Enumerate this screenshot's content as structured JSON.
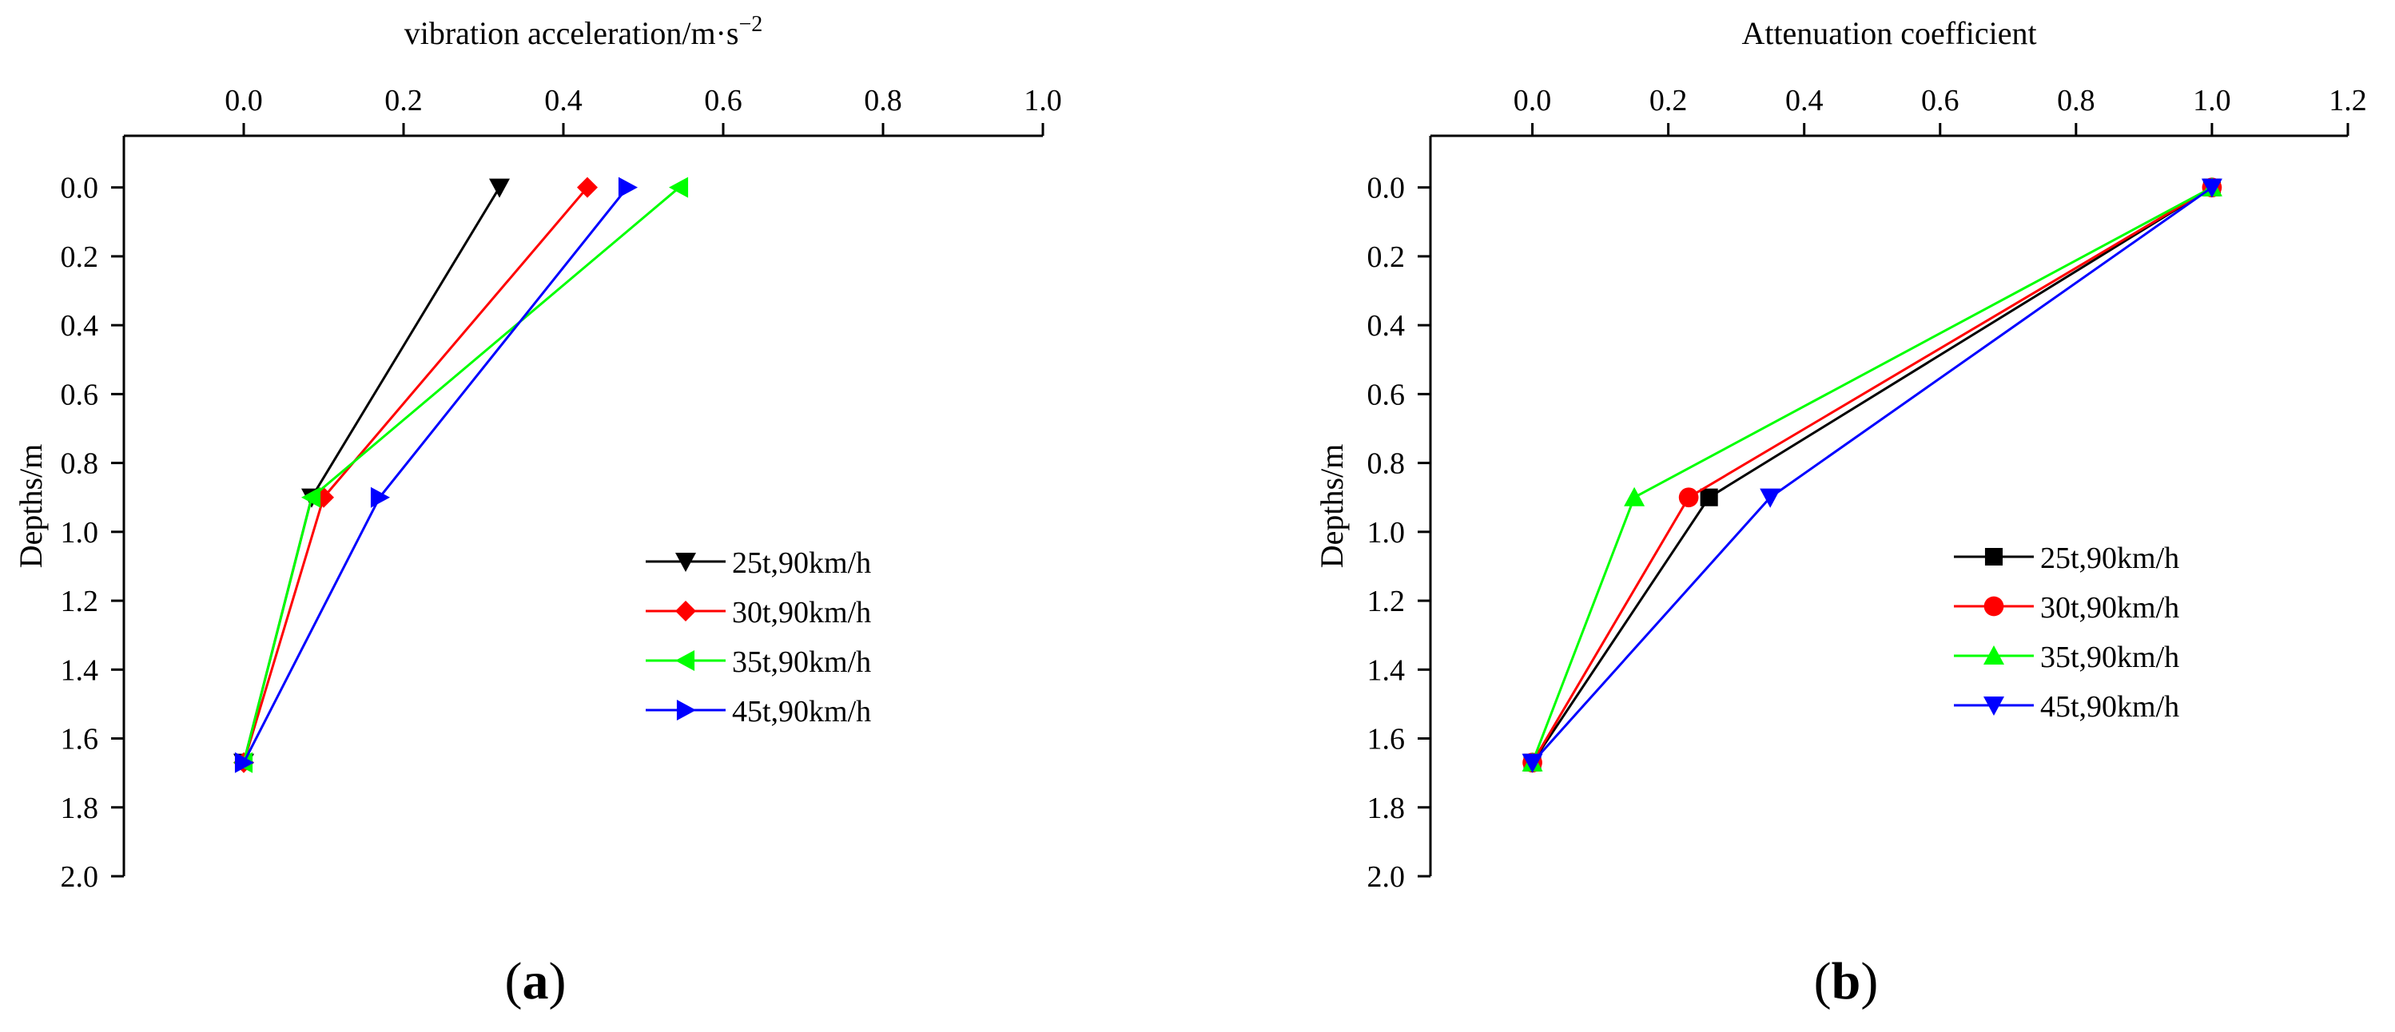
{
  "chart_data": [
    {
      "type": "line",
      "panel_label": "a",
      "xlabel": "vibration acceleration/m·s",
      "xlabel_superscript": "−2",
      "ylabel": "Depths/m",
      "xlim": [
        -0.15,
        1.0
      ],
      "ylim": [
        2.0,
        -0.15
      ],
      "x_ticks": [
        "0.0",
        "0.2",
        "0.4",
        "0.6",
        "0.8",
        "1.0"
      ],
      "y_ticks": [
        "0.0",
        "0.2",
        "0.4",
        "0.6",
        "0.8",
        "1.0",
        "1.2",
        "1.4",
        "1.6",
        "1.8",
        "2.0"
      ],
      "x_axis_position": "top",
      "y_axis_inverted": true,
      "legend_position": "right-middle",
      "series": [
        {
          "name": "25t,90km/h",
          "color": "#000000",
          "marker": "triangle-down",
          "points": [
            [
              0.32,
              0.0
            ],
            [
              0.085,
              0.9
            ],
            [
              0.0,
              1.67
            ]
          ]
        },
        {
          "name": "30t,90km/h",
          "color": "#ff0000",
          "marker": "diamond",
          "points": [
            [
              0.43,
              0.0
            ],
            [
              0.1,
              0.9
            ],
            [
              0.0,
              1.67
            ]
          ]
        },
        {
          "name": "35t,90km/h",
          "color": "#00ff00",
          "marker": "triangle-left",
          "points": [
            [
              0.545,
              0.0
            ],
            [
              0.085,
              0.9
            ],
            [
              0.0,
              1.67
            ]
          ]
        },
        {
          "name": "45t,90km/h",
          "color": "#0000ff",
          "marker": "triangle-right",
          "points": [
            [
              0.48,
              0.0
            ],
            [
              0.17,
              0.9
            ],
            [
              0.0,
              1.67
            ]
          ]
        }
      ]
    },
    {
      "type": "line",
      "panel_label": "b",
      "xlabel": "Attenuation coefficient",
      "ylabel": "Depths/m",
      "xlim": [
        -0.15,
        1.2
      ],
      "ylim": [
        2.0,
        -0.15
      ],
      "x_ticks": [
        "0.0",
        "0.2",
        "0.4",
        "0.6",
        "0.8",
        "1.0",
        "1.2"
      ],
      "y_ticks": [
        "0.0",
        "0.2",
        "0.4",
        "0.6",
        "0.8",
        "1.0",
        "1.2",
        "1.4",
        "1.6",
        "1.8",
        "2.0"
      ],
      "x_axis_position": "top",
      "y_axis_inverted": true,
      "legend_position": "right-middle",
      "series": [
        {
          "name": "25t,90km/h",
          "color": "#000000",
          "marker": "square",
          "points": [
            [
              1.0,
              0.0
            ],
            [
              0.26,
              0.9
            ],
            [
              0.0,
              1.67
            ]
          ]
        },
        {
          "name": "30t,90km/h",
          "color": "#ff0000",
          "marker": "circle",
          "points": [
            [
              1.0,
              0.0
            ],
            [
              0.23,
              0.9
            ],
            [
              0.0,
              1.67
            ]
          ]
        },
        {
          "name": "35t,90km/h",
          "color": "#00ff00",
          "marker": "triangle-up",
          "points": [
            [
              1.0,
              0.0
            ],
            [
              0.15,
              0.9
            ],
            [
              0.0,
              1.67
            ]
          ]
        },
        {
          "name": "45t,90km/h",
          "color": "#0000ff",
          "marker": "triangle-down",
          "points": [
            [
              1.0,
              0.0
            ],
            [
              0.35,
              0.9
            ],
            [
              0.0,
              1.67
            ]
          ]
        }
      ]
    }
  ]
}
